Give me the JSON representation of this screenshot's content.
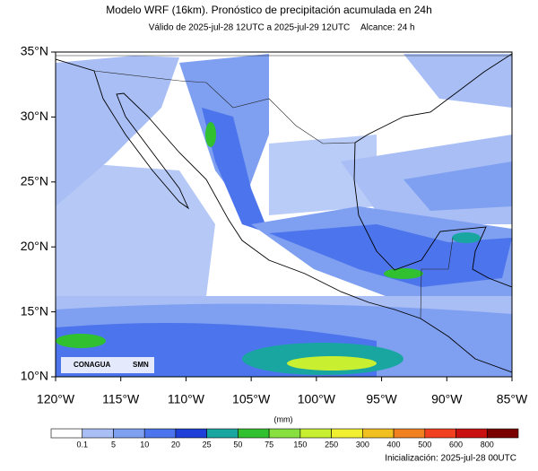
{
  "header": {
    "title": "Modelo WRF (16km). Pronóstico de precipitación acumulada en 24h",
    "validity": "Válido de 2025-jul-28 12UTC a 2025-jul-29 12UTC",
    "lead_time": "Alcance: 24 h"
  },
  "map": {
    "lat_labels": [
      "35°N",
      "30°N",
      "25°N",
      "20°N",
      "15°N",
      "10°N"
    ],
    "lon_labels": [
      "120°W",
      "115°W",
      "110°W",
      "105°W",
      "100°W",
      "95°W",
      "90°W",
      "85°W"
    ],
    "logos": [
      "CONAGUA",
      "SMN"
    ]
  },
  "colorbar": {
    "unit": "(mm)",
    "labels": [
      "0.1",
      "5",
      "10",
      "20",
      "25",
      "50",
      "75",
      "150",
      "250",
      "300",
      "400",
      "500",
      "600",
      "800"
    ]
  },
  "footer": {
    "init": "Inicialización: 2025-jul-28 00UTC"
  }
}
